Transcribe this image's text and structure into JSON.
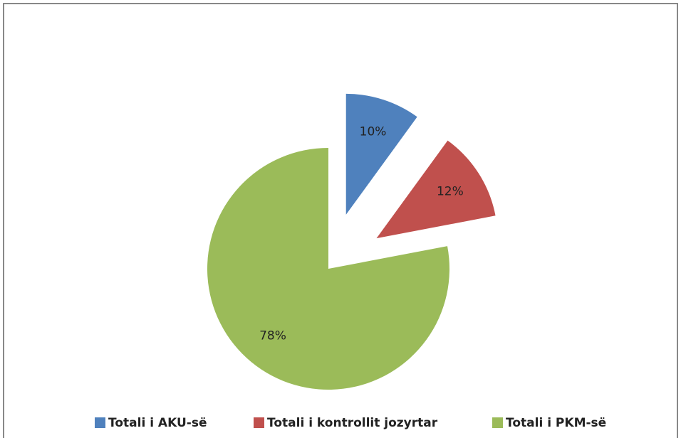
{
  "chart_data": {
    "type": "pie",
    "categories": [
      "Totali i AKU-së",
      "Totali i kontrollit jozyrtar",
      "Totali i PKM-së"
    ],
    "values": [
      10,
      12,
      78
    ],
    "value_labels": [
      "10%",
      "12%",
      "78%"
    ],
    "colors": [
      "#4f81bd",
      "#c0504d",
      "#9bbb59"
    ],
    "exploded": [
      true,
      true,
      false
    ],
    "legend": "bottom"
  }
}
